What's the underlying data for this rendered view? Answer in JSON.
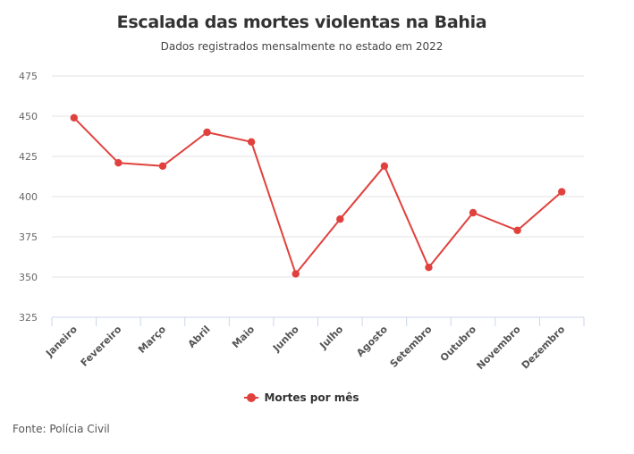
{
  "chart_data": {
    "type": "line",
    "title": "Escalada das mortes violentas na Bahia",
    "subtitle": "Dados registrados mensalmente no estado em 2022",
    "xlabel": "",
    "ylabel": "",
    "categories": [
      "Janeiro",
      "Fevereiro",
      "Março",
      "Abril",
      "Maio",
      "Junho",
      "Julho",
      "Agosto",
      "Setembro",
      "Outubro",
      "Novembro",
      "Dezembro"
    ],
    "series": [
      {
        "name": "Mortes por mês",
        "color": "#e0413d",
        "values": [
          449,
          421,
          419,
          440,
          434,
          352,
          386,
          419,
          356,
          390,
          379,
          403
        ]
      }
    ],
    "ylim": [
      325,
      475
    ],
    "yticks": [
      325,
      350,
      375,
      400,
      425,
      450,
      475
    ],
    "grid": true,
    "legend_position": "bottom-center",
    "source": "Fonte: Polícia Civil"
  }
}
